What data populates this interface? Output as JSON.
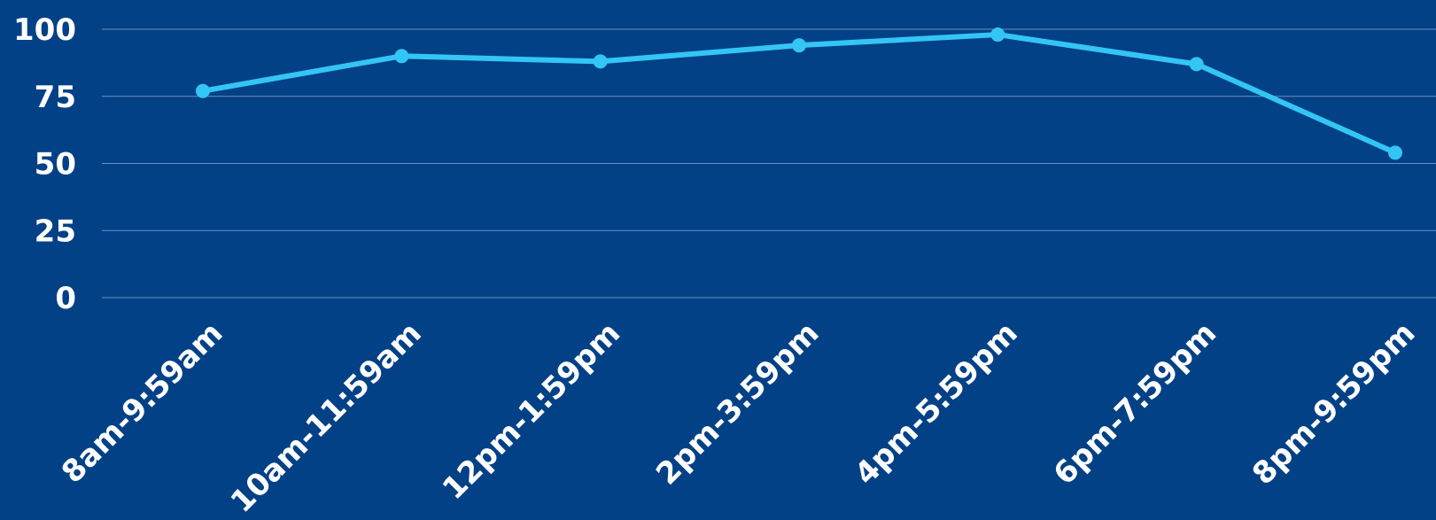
{
  "chart_data": {
    "type": "line",
    "title": "",
    "xlabel": "",
    "ylabel": "",
    "categories": [
      "8am-9:59am",
      "10am-11:59am",
      "12pm-1:59pm",
      "2pm-3:59pm",
      "4pm-5:59pm",
      "6pm-7:59pm",
      "8pm-9:59pm"
    ],
    "values": [
      77,
      90,
      88,
      94,
      98,
      87,
      54
    ],
    "ylim": [
      0,
      100
    ],
    "yticks": [
      "0",
      "25",
      "50",
      "75",
      "100"
    ],
    "grid": true,
    "legend": "none"
  },
  "colors": {
    "background": "#034187",
    "line": "#33c6f4",
    "grid": "#6a8fbf",
    "text": "#ffffff"
  }
}
